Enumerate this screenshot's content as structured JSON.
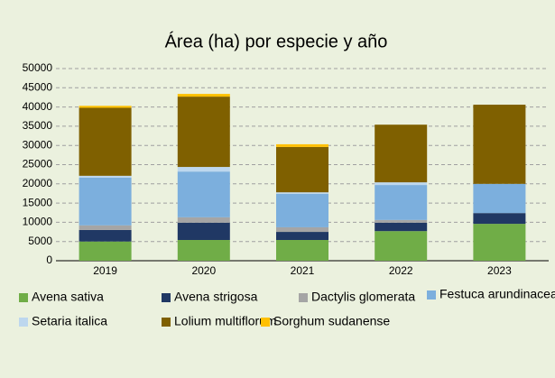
{
  "chart_data": {
    "type": "stacked_bar",
    "title": "Área (ha) por especie y año",
    "categories": [
      "2019",
      "2020",
      "2021",
      "2022",
      "2023"
    ],
    "series": [
      {
        "name": "Avena sativa",
        "color": "#70ad47",
        "values": [
          5000,
          5400,
          5400,
          7700,
          9600
        ]
      },
      {
        "name": "Avena strigosa",
        "color": "#203864",
        "values": [
          3000,
          4500,
          2100,
          2200,
          2800
        ]
      },
      {
        "name": "Dactylis glomerata",
        "color": "#a5a5a5",
        "values": [
          1200,
          1400,
          1200,
          700,
          0
        ]
      },
      {
        "name": "Festuca arundinacea",
        "color": "#7cafdd",
        "values": [
          12400,
          11900,
          8700,
          9100,
          7600
        ]
      },
      {
        "name": "Setaria italica",
        "color": "#bdd7ee",
        "values": [
          500,
          1200,
          400,
          700,
          0
        ]
      },
      {
        "name": "Lolium multiflorum",
        "color": "#7f6000",
        "values": [
          17700,
          18300,
          11800,
          15000,
          20600
        ]
      },
      {
        "name": "Sorghum sudanense",
        "color": "#ffc000",
        "values": [
          500,
          700,
          700,
          0,
          0
        ]
      }
    ],
    "ylim": [
      0,
      50000
    ],
    "yticks": [
      0,
      5000,
      10000,
      15000,
      20000,
      25000,
      30000,
      35000,
      40000,
      45000,
      50000
    ],
    "grid": true
  }
}
